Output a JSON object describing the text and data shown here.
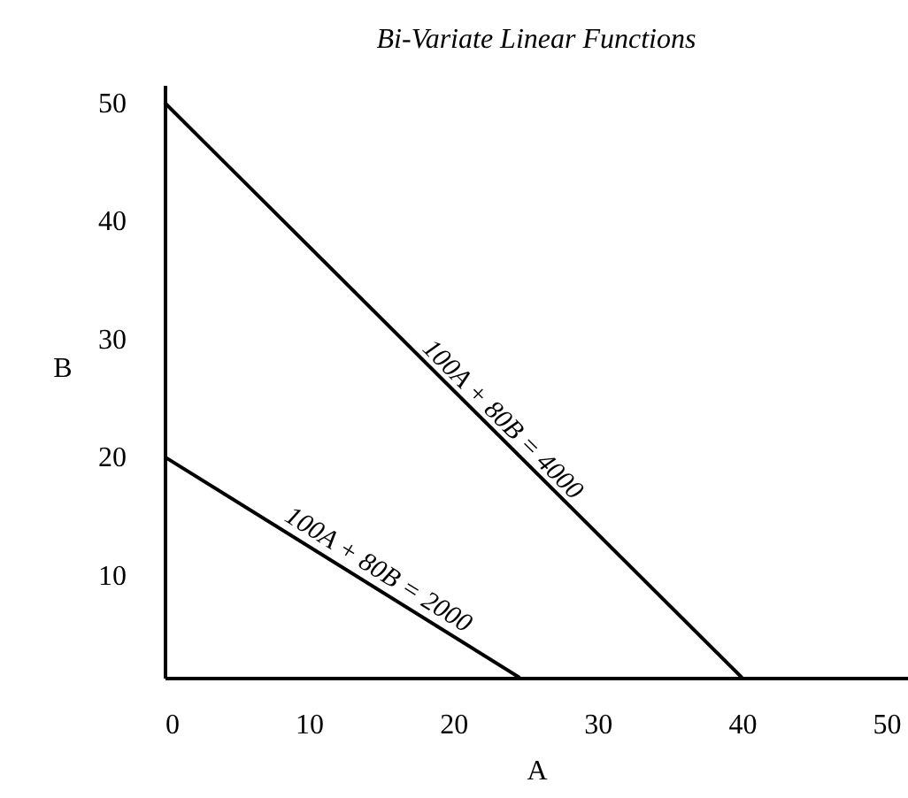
{
  "chart_data": {
    "type": "line",
    "title": "Bi-Variate Linear Functions",
    "xlabel": "A",
    "ylabel": "B",
    "series": [
      {
        "color": "#000000",
        "x": [
          0,
          40
        ],
        "values": [
          50,
          1.3
        ]
      },
      {
        "color": "#000000",
        "x": [
          0,
          24.6
        ],
        "values": [
          20,
          1.3
        ]
      }
    ],
    "xlim": [
      0,
      51.5
    ],
    "ylim": [
      1.3,
      51.5
    ],
    "xticks": [
      0,
      10,
      20,
      30,
      40,
      50
    ],
    "yticks": [
      10,
      20,
      30,
      40,
      50
    ],
    "annotations": [
      "100A + 80B = 4000",
      "100A + 80B = 2000"
    ],
    "grid": false,
    "marker": "none",
    "line_style": "solid"
  }
}
